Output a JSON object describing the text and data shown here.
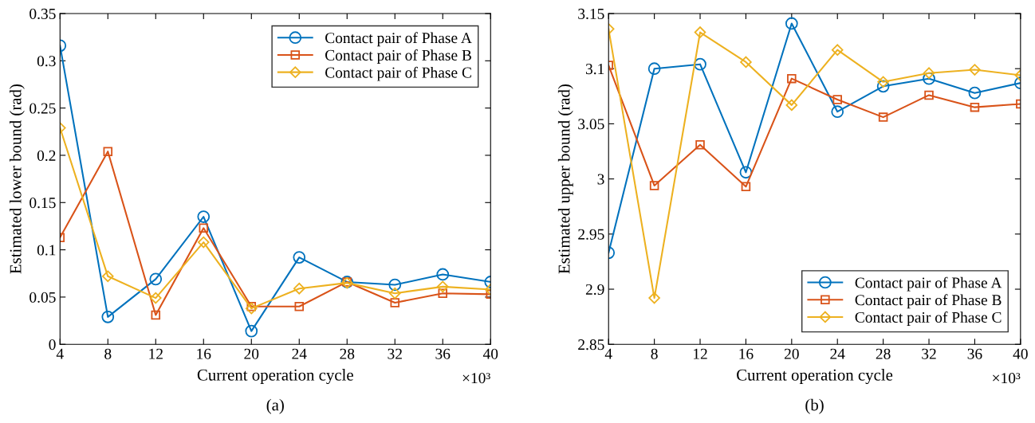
{
  "chart_data": [
    {
      "type": "line",
      "xlabel": "Current operation cycle",
      "ylabel": "Estimated lower bound (rad)",
      "x": [
        4,
        8,
        12,
        16,
        20,
        24,
        28,
        32,
        36,
        40
      ],
      "xlim": [
        4,
        40
      ],
      "xticks": [
        4,
        8,
        12,
        16,
        20,
        24,
        28,
        32,
        36,
        40
      ],
      "ylim": [
        0,
        0.35
      ],
      "yticks": [
        0,
        0.05,
        0.1,
        0.15,
        0.2,
        0.25,
        0.3,
        0.35
      ],
      "grid": false,
      "legend": "top right",
      "line_style": "solid",
      "series": [
        {
          "name": "Contact pair of Phase A",
          "color": "#0072bd",
          "marker": "circle",
          "values": [
            0.316,
            0.029,
            0.069,
            0.135,
            0.014,
            0.092,
            0.066,
            0.063,
            0.074,
            0.066
          ]
        },
        {
          "name": "Contact pair of Phase B",
          "color": "#d95319",
          "marker": "square",
          "values": [
            0.113,
            0.204,
            0.031,
            0.123,
            0.04,
            0.04,
            0.066,
            0.044,
            0.054,
            0.053
          ]
        },
        {
          "name": "Contact pair of Phase C",
          "color": "#edb120",
          "marker": "diamond",
          "values": [
            0.229,
            0.072,
            0.049,
            0.108,
            0.038,
            0.059,
            0.065,
            0.054,
            0.061,
            0.058
          ]
        }
      ],
      "annotations": [
        "×10³",
        "(a)"
      ]
    },
    {
      "type": "line",
      "xlabel": "Current operation cycle",
      "ylabel": "Estimated upper bound (rad)",
      "x": [
        4,
        8,
        12,
        16,
        20,
        24,
        28,
        32,
        36,
        40
      ],
      "xlim": [
        4,
        40
      ],
      "xticks": [
        4,
        8,
        12,
        16,
        20,
        24,
        28,
        32,
        36,
        40
      ],
      "ylim": [
        2.85,
        3.15
      ],
      "yticks": [
        2.85,
        2.9,
        2.95,
        3,
        3.05,
        3.1,
        3.15
      ],
      "grid": false,
      "legend": "bottom right",
      "line_style": "solid",
      "series": [
        {
          "name": "Contact pair of Phase A",
          "color": "#0072bd",
          "marker": "circle",
          "values": [
            2.933,
            3.1,
            3.104,
            3.006,
            3.141,
            3.061,
            3.084,
            3.091,
            3.078,
            3.087
          ]
        },
        {
          "name": "Contact pair of Phase B",
          "color": "#d95319",
          "marker": "square",
          "values": [
            3.103,
            2.994,
            3.031,
            2.993,
            3.091,
            3.072,
            3.056,
            3.076,
            3.065,
            3.068
          ]
        },
        {
          "name": "Contact pair of Phase C",
          "color": "#edb120",
          "marker": "diamond",
          "values": [
            3.136,
            2.892,
            3.133,
            3.106,
            3.067,
            3.117,
            3.088,
            3.096,
            3.099,
            3.094
          ]
        }
      ],
      "annotations": [
        "×10³",
        "(b)"
      ]
    }
  ]
}
